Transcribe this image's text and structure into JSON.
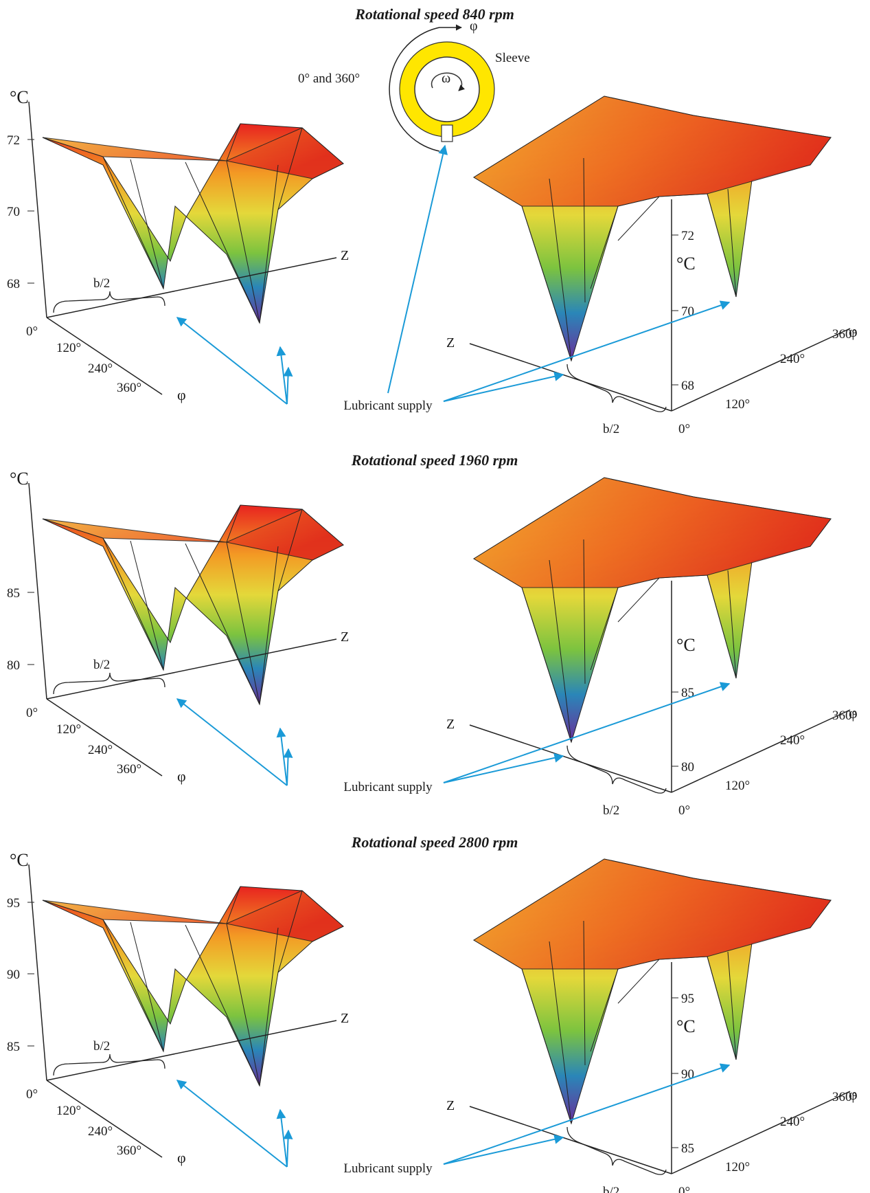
{
  "panel_titles": [
    "Rotational speed 840 rpm",
    "Rotational speed 1960 rpm",
    "Rotational speed 2800 rpm"
  ],
  "inset": {
    "phi": "φ",
    "omega": "ω",
    "sleeve": "Sleeve",
    "zero_label": "0° and 360°"
  },
  "annotation": "Lubricant supply",
  "brace_label": "b/2",
  "axis": {
    "unit": "°C",
    "z": "Z",
    "phi": "φ",
    "zero": "0°",
    "phi_ticks": [
      "120°",
      "240°",
      "360°"
    ]
  },
  "colors": {
    "supply_arrow": "#1a9ad7",
    "sleeve_ring": "#ffe600",
    "axis": "#222222"
  },
  "chart_data": [
    {
      "type": "surface3d",
      "title": "Rotational speed 840 rpm",
      "view": "left",
      "zlabel": "°C",
      "xlabel": "φ",
      "ylabel": "Z",
      "z_ticks": [
        68,
        70,
        72
      ],
      "phi_ticks": [
        "0°",
        "120°",
        "240°",
        "360°"
      ],
      "supply_minima_c": [
        68,
        68
      ]
    },
    {
      "type": "surface3d",
      "title": "Rotational speed 840 rpm",
      "view": "right",
      "zlabel": "°C",
      "xlabel": "φ",
      "ylabel": "Z",
      "z_ticks": [
        68,
        70,
        72
      ],
      "phi_ticks": [
        "0°",
        "120°",
        "240°",
        "360°"
      ]
    },
    {
      "type": "surface3d",
      "title": "Rotational speed 1960 rpm",
      "view": "left",
      "zlabel": "°C",
      "xlabel": "φ",
      "ylabel": "Z",
      "z_ticks": [
        80,
        85
      ],
      "phi_ticks": [
        "0°",
        "120°",
        "240°",
        "360°"
      ]
    },
    {
      "type": "surface3d",
      "title": "Rotational speed 1960 rpm",
      "view": "right",
      "zlabel": "°C",
      "xlabel": "φ",
      "ylabel": "Z",
      "z_ticks": [
        80,
        85
      ],
      "phi_ticks": [
        "0°",
        "120°",
        "240°",
        "360°"
      ]
    },
    {
      "type": "surface3d",
      "title": "Rotational speed 2800 rpm",
      "view": "left",
      "zlabel": "°C",
      "xlabel": "φ",
      "ylabel": "Z",
      "z_ticks": [
        85,
        90,
        95
      ],
      "phi_ticks": [
        "0°",
        "120°",
        "240°",
        "360°"
      ]
    },
    {
      "type": "surface3d",
      "title": "Rotational speed 2800 rpm",
      "view": "right",
      "zlabel": "°C",
      "xlabel": "φ",
      "ylabel": "Z",
      "z_ticks": [
        85,
        90,
        95
      ],
      "phi_ticks": [
        "0°",
        "120°",
        "240°",
        "360°"
      ]
    }
  ]
}
